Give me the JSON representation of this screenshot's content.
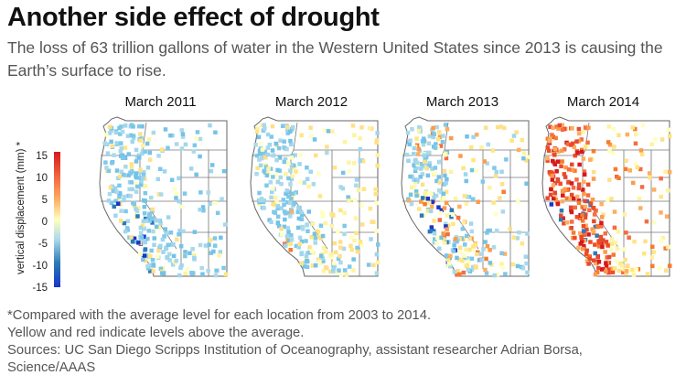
{
  "title": "Another side effect of drought",
  "subtitle": "The loss of 63 trillion gallons of water in the Western United States since 2013  is causing the Earth’s surface to rise.",
  "legend": {
    "label": "vertical displacement (mm) *",
    "ticks": [
      "15",
      "10",
      "5",
      "0",
      "-5",
      "-10",
      "-15"
    ],
    "colors": [
      "#d7191c",
      "#f46d43",
      "#fdae61",
      "#ffffbf",
      "#abd9e9",
      "#74c2e6",
      "#2c7bb6",
      "#1a35c8"
    ]
  },
  "panels": [
    {
      "label": "March 2011",
      "scheme": "blue"
    },
    {
      "label": "March 2012",
      "scheme": "mixed"
    },
    {
      "label": "March 2013",
      "scheme": "mixed2"
    },
    {
      "label": "March 2014",
      "scheme": "red"
    }
  ],
  "notes": {
    "line1": "*Compared with the average level for each location from 2003 to 2014.",
    "line2": "Yellow and red indicate levels above the average.",
    "line3": "Sources: UC San Diego Scripps Institution of Oceanography, assistant researcher Adrian Borsa,",
    "line4": "Science/AAAS"
  }
}
